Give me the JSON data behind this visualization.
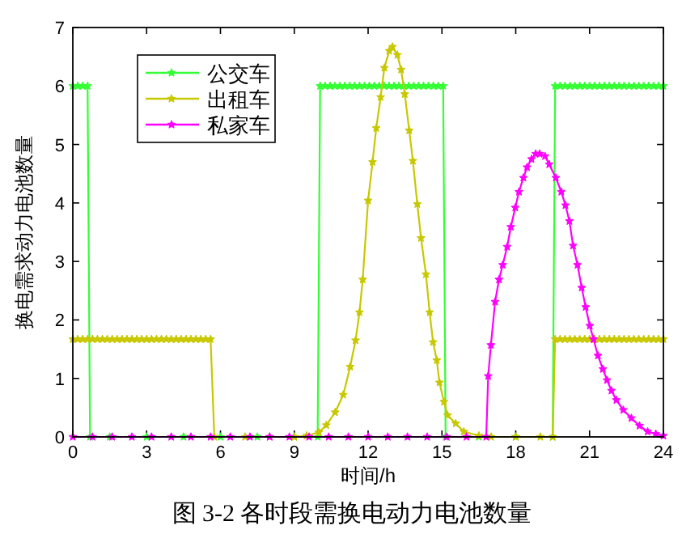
{
  "chart_data": {
    "type": "line",
    "title": "图 3-2  各时段需换电动力电池数量",
    "xlabel": "时间/h",
    "ylabel": "换电需求动力电池数量",
    "xlim": [
      0,
      24
    ],
    "xticks": [
      0,
      3,
      6,
      9,
      12,
      15,
      18,
      21,
      24
    ],
    "ylim": [
      0,
      7
    ],
    "yticks": [
      0,
      1,
      2,
      3,
      4,
      5,
      6,
      7
    ],
    "legend": "top left",
    "marker": "star",
    "line_style": "solid",
    "series": [
      {
        "name": "公交车",
        "color": "#33ff33",
        "x": [
          0,
          0.2,
          0.4,
          0.6,
          0.7,
          1.5,
          3,
          4.5,
          6,
          7.5,
          9,
          9.95,
          10.05,
          10.25,
          10.45,
          10.65,
          10.85,
          11.05,
          11.25,
          11.45,
          11.65,
          11.85,
          12.05,
          12.25,
          12.45,
          12.65,
          12.85,
          13.05,
          13.25,
          13.45,
          13.65,
          13.85,
          14.05,
          14.25,
          14.45,
          14.65,
          14.85,
          15.05,
          15.15,
          16.5,
          18,
          19.5,
          19.6,
          19.8,
          20,
          20.2,
          20.4,
          20.6,
          20.8,
          21,
          21.2,
          21.4,
          21.6,
          21.8,
          22,
          22.2,
          22.4,
          22.6,
          22.8,
          23,
          23.2,
          23.4,
          23.6,
          23.8,
          24
        ],
        "values": [
          6,
          6,
          6,
          6,
          0,
          0,
          0,
          0,
          0,
          0,
          0,
          0,
          6,
          6,
          6,
          6,
          6,
          6,
          6,
          6,
          6,
          6,
          6,
          6,
          6,
          6,
          6,
          6,
          6,
          6,
          6,
          6,
          6,
          6,
          6,
          6,
          6,
          6,
          0,
          0,
          0,
          0,
          6,
          6,
          6,
          6,
          6,
          6,
          6,
          6,
          6,
          6,
          6,
          6,
          6,
          6,
          6,
          6,
          6,
          6,
          6,
          6,
          6,
          6,
          6
        ]
      },
      {
        "name": "出租车",
        "color": "#c8c800",
        "x": [
          0,
          0.2,
          0.4,
          0.6,
          0.8,
          1,
          1.2,
          1.4,
          1.6,
          1.8,
          2,
          2.2,
          2.4,
          2.6,
          2.8,
          3,
          3.2,
          3.4,
          3.6,
          3.8,
          4,
          4.2,
          4.4,
          4.6,
          4.8,
          5,
          5.2,
          5.4,
          5.6,
          5.75,
          7,
          8,
          9,
          9.5,
          10,
          10.3,
          10.66,
          10.99,
          11.27,
          11.49,
          11.65,
          11.78,
          12,
          12.18,
          12.33,
          12.51,
          12.66,
          12.86,
          12.99,
          13.19,
          13.34,
          13.49,
          13.67,
          13.82,
          14,
          14.15,
          14.35,
          14.5,
          14.64,
          14.79,
          14.9,
          15.08,
          15.23,
          15.56,
          15.89,
          16.5,
          17,
          18,
          19,
          19.5,
          19.6,
          19.8,
          20,
          20.2,
          20.4,
          20.6,
          20.8,
          21,
          21.2,
          21.4,
          21.6,
          21.8,
          22,
          22.2,
          22.4,
          22.6,
          22.8,
          23,
          23.2,
          23.4,
          23.6,
          23.8,
          24
        ],
        "values": [
          1.67,
          1.67,
          1.67,
          1.67,
          1.67,
          1.67,
          1.67,
          1.67,
          1.67,
          1.67,
          1.67,
          1.67,
          1.67,
          1.67,
          1.67,
          1.67,
          1.67,
          1.67,
          1.67,
          1.67,
          1.67,
          1.67,
          1.67,
          1.67,
          1.67,
          1.67,
          1.67,
          1.67,
          1.67,
          0,
          0,
          0,
          0,
          0.02,
          0.08,
          0.2,
          0.42,
          0.72,
          1.2,
          1.65,
          2.13,
          2.69,
          4.04,
          4.7,
          5.28,
          5.81,
          6.31,
          6.6,
          6.67,
          6.53,
          6.28,
          5.86,
          5.24,
          4.72,
          3.98,
          3.4,
          2.78,
          2.13,
          1.62,
          1.31,
          0.93,
          0.6,
          0.37,
          0.23,
          0.09,
          0.02,
          0,
          0,
          0,
          0,
          1.67,
          1.67,
          1.67,
          1.67,
          1.67,
          1.67,
          1.67,
          1.67,
          1.67,
          1.67,
          1.67,
          1.67,
          1.67,
          1.67,
          1.67,
          1.67,
          1.67,
          1.67,
          1.67,
          1.67,
          1.67,
          1.67,
          1.67
        ]
      },
      {
        "name": "私家车",
        "color": "#ff00ff",
        "x": [
          0,
          0.8,
          1.6,
          2.4,
          3.2,
          4,
          4.8,
          5.6,
          6.4,
          7.2,
          8,
          8.8,
          9.6,
          10.4,
          11.2,
          12,
          12.8,
          13.6,
          14.4,
          15.2,
          16,
          16.8,
          16.88,
          16.99,
          17.16,
          17.32,
          17.47,
          17.65,
          17.8,
          17.98,
          18.13,
          18.31,
          18.46,
          18.64,
          18.81,
          18.97,
          19.19,
          19.36,
          19.63,
          19.85,
          20.02,
          20.18,
          20.33,
          20.51,
          20.68,
          20.84,
          21.01,
          21.16,
          21.34,
          21.54,
          21.71,
          21.89,
          22.09,
          22.37,
          22.7,
          23.03,
          23.36,
          23.69,
          24
        ],
        "values": [
          0,
          0,
          0,
          0,
          0,
          0,
          0,
          0,
          0,
          0,
          0,
          0,
          0,
          0,
          0,
          0,
          0,
          0,
          0,
          0,
          0,
          0,
          1.04,
          1.57,
          2.31,
          2.69,
          2.94,
          3.25,
          3.59,
          3.92,
          4.19,
          4.43,
          4.61,
          4.75,
          4.84,
          4.84,
          4.8,
          4.66,
          4.43,
          4.19,
          3.96,
          3.69,
          3.27,
          2.94,
          2.55,
          2.22,
          1.9,
          1.67,
          1.39,
          1.16,
          0.97,
          0.79,
          0.63,
          0.46,
          0.32,
          0.19,
          0.09,
          0.05,
          0.02
        ]
      }
    ]
  }
}
